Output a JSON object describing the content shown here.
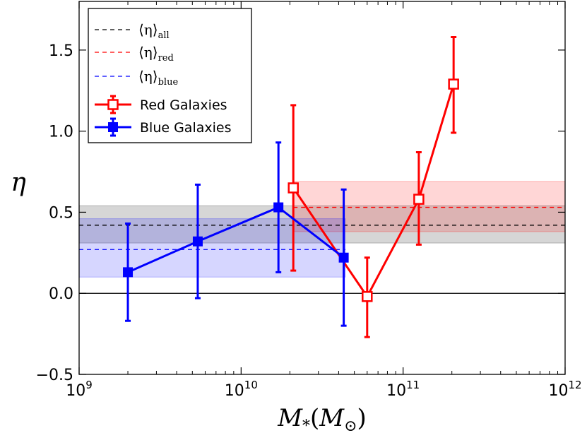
{
  "chart_data": {
    "type": "scatter",
    "x_scale": "log",
    "xlim": [
      1000000000,
      1000000000000
    ],
    "ylim": [
      -0.5,
      1.8
    ],
    "xlabel": "M*(M⊙)",
    "ylabel": "η",
    "x_ticks": [
      {
        "value": 1000000000,
        "base": "10",
        "exp": "9"
      },
      {
        "value": 10000000000,
        "base": "10",
        "exp": "10"
      },
      {
        "value": 100000000000,
        "base": "10",
        "exp": "11"
      },
      {
        "value": 1000000000000,
        "base": "10",
        "exp": "12"
      }
    ],
    "y_ticks": [
      {
        "value": -0.5,
        "label": "−0.5"
      },
      {
        "value": 0.0,
        "label": "0.0"
      },
      {
        "value": 0.5,
        "label": "0.5"
      },
      {
        "value": 1.0,
        "label": "1.0"
      },
      {
        "value": 1.5,
        "label": "1.5"
      }
    ],
    "zero_line": 0.0,
    "bands": [
      {
        "name": "all",
        "mean": 0.42,
        "low": 0.31,
        "high": 0.54,
        "x_range": [
          1000000000,
          1000000000000
        ],
        "color": "#000000"
      },
      {
        "name": "red",
        "mean": 0.53,
        "low": 0.38,
        "high": 0.69,
        "x_range": [
          21000000000,
          1000000000000
        ],
        "color": "#ff0000"
      },
      {
        "name": "blue",
        "mean": 0.27,
        "low": 0.1,
        "high": 0.46,
        "x_range": [
          1000000000,
          44000000000
        ],
        "color": "#0000ff"
      }
    ],
    "series": [
      {
        "name": "Red Galaxies",
        "color": "#ff0000",
        "marker": "open-square",
        "x": [
          21000000000,
          60000000000,
          125000000000,
          205000000000
        ],
        "y": [
          0.65,
          -0.02,
          0.58,
          1.29
        ],
        "yerr_low": [
          0.14,
          -0.27,
          0.3,
          0.99
        ],
        "yerr_high": [
          1.16,
          0.22,
          0.87,
          1.58
        ]
      },
      {
        "name": "Blue Galaxies",
        "color": "#0000ff",
        "marker": "filled-square",
        "x": [
          2000000000,
          5400000000,
          17000000000,
          43000000000
        ],
        "y": [
          0.13,
          0.32,
          0.53,
          0.22
        ],
        "yerr_low": [
          -0.17,
          -0.03,
          0.13,
          -0.2
        ],
        "yerr_high": [
          0.43,
          0.67,
          0.93,
          0.64
        ]
      }
    ],
    "legend": {
      "location": "upper-left",
      "entries": [
        {
          "kind": "dashed",
          "color": "#000000",
          "symbol": "⟨η⟩",
          "sub": "all"
        },
        {
          "kind": "dashed",
          "color": "#ff0000",
          "symbol": "⟨η⟩",
          "sub": "red"
        },
        {
          "kind": "dashed",
          "color": "#0000ff",
          "symbol": "⟨η⟩",
          "sub": "blue"
        },
        {
          "kind": "open-square",
          "color": "#ff0000",
          "label": "Red Galaxies"
        },
        {
          "kind": "filled-square",
          "color": "#0000ff",
          "label": "Blue Galaxies"
        }
      ]
    }
  }
}
